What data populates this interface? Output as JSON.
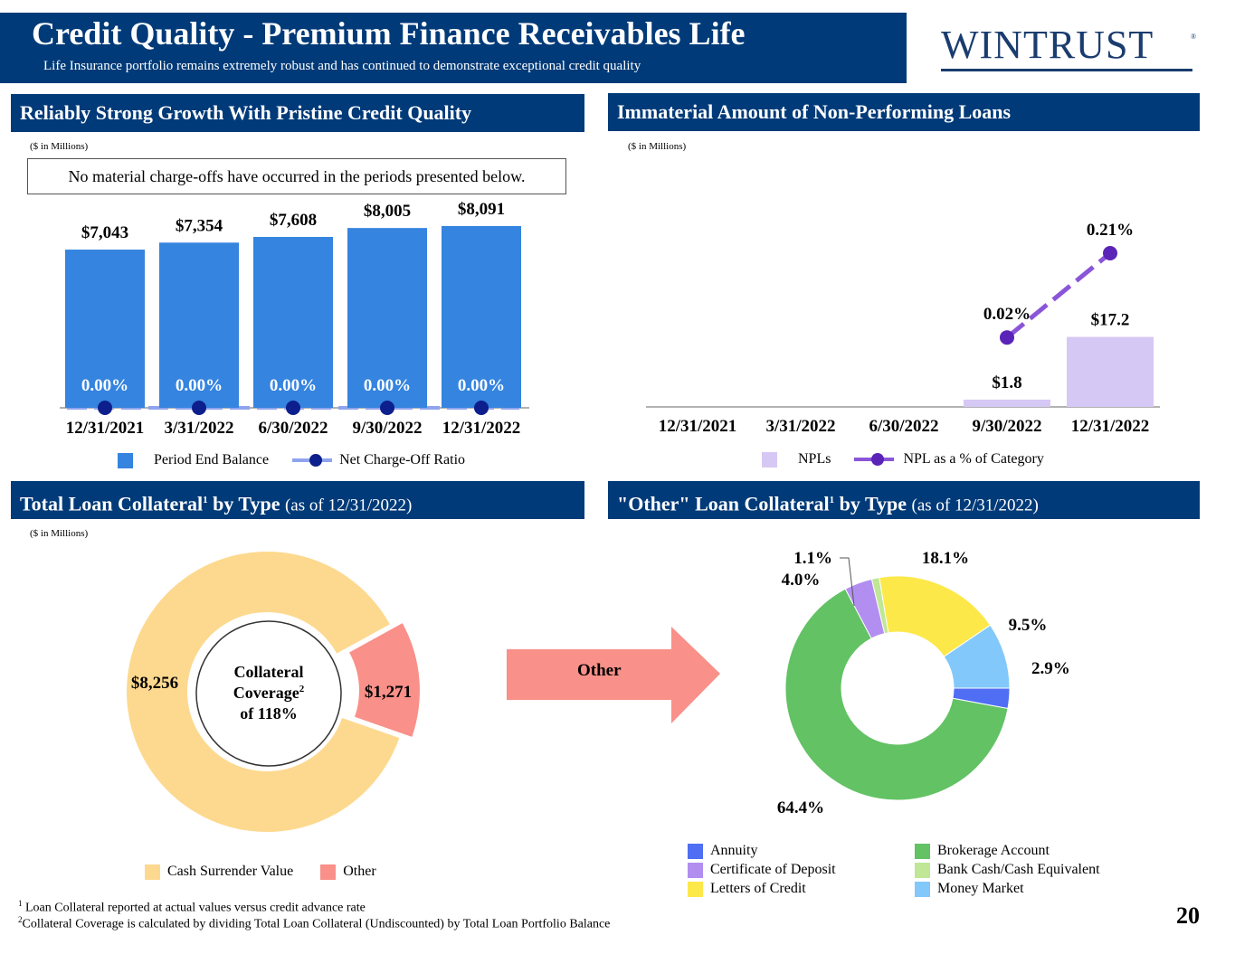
{
  "header": {
    "title": "Credit Quality - Premium Finance Receivables Life",
    "subtitle": "Life Insurance portfolio remains extremely robust and has continued to demonstrate exceptional credit quality",
    "logo_text": "WINTRUST"
  },
  "sections": {
    "growth_title": "Reliably Strong Growth With Pristine Credit Quality",
    "npl_title": "Immaterial Amount of Non-Performing Loans",
    "total_collateral_title": "Total Loan Collateral",
    "total_collateral_suffix": " by Type ",
    "total_collateral_asof": "(as of 12/31/2022)",
    "other_collateral_title": "\"Other\" Loan Collateral",
    "other_collateral_suffix": " by Type ",
    "other_collateral_asof": "(as of 12/31/2022)",
    "sup1": "1",
    "units": "($ in Millions)",
    "note": "No material charge-offs have occurred in the periods presented below."
  },
  "chart_data": [
    {
      "type": "bar",
      "title": "Reliably Strong Growth With Pristine Credit Quality",
      "categories": [
        "12/31/2021",
        "3/31/2022",
        "6/30/2022",
        "9/30/2022",
        "12/31/2022"
      ],
      "series": [
        {
          "name": "Period End Balance",
          "values": [
            7043,
            7354,
            7608,
            8005,
            8091
          ],
          "labels": [
            "$7,043",
            "$7,354",
            "$7,608",
            "$8,005",
            "$8,091"
          ],
          "color": "#3584df"
        },
        {
          "name": "Net Charge-Off Ratio",
          "values": [
            0.0,
            0.0,
            0.0,
            0.0,
            0.0
          ],
          "labels": [
            "0.00%",
            "0.00%",
            "0.00%",
            "0.00%",
            "0.00%"
          ],
          "color": "#0d1f8c",
          "line_color": "#8fa4ee"
        }
      ],
      "ylim": [
        0,
        9500
      ]
    },
    {
      "type": "bar",
      "title": "Immaterial Amount of Non-Performing Loans",
      "categories": [
        "12/31/2021",
        "3/31/2022",
        "6/30/2022",
        "9/30/2022",
        "12/31/2022"
      ],
      "series": [
        {
          "name": "NPLs",
          "values": [
            0,
            0,
            0,
            1.8,
            17.2
          ],
          "labels": [
            "",
            "",
            "",
            "$1.8",
            "$17.2"
          ],
          "color": "#d6c8f4"
        },
        {
          "name": "NPL as a % of Category",
          "values": [
            null,
            null,
            null,
            0.02,
            0.21
          ],
          "labels": [
            "",
            "",
            "",
            "0.02%",
            "0.21%"
          ],
          "color": "#5b24b8",
          "line_color": "#8a55d8"
        }
      ],
      "ylim": [
        0,
        40
      ]
    },
    {
      "type": "pie",
      "title": "Total Loan Collateral by Type (as of 12/31/2022)",
      "categories": [
        "Cash Surrender Value",
        "Other"
      ],
      "values": [
        8256,
        1271
      ],
      "labels": [
        "$8,256",
        "$1,271"
      ],
      "colors": [
        "#fdd98f",
        "#f99089"
      ],
      "center_lines": [
        "Collateral",
        "Coverage",
        "of 118%"
      ],
      "center_sup": "2"
    },
    {
      "type": "pie",
      "title": "\"Other\" Loan Collateral by Type (as of 12/31/2022)",
      "categories": [
        "Annuity",
        "Brokerage Account",
        "Certificate of Deposit",
        "Bank Cash/Cash Equivalent",
        "Letters of Credit",
        "Money Market"
      ],
      "values": [
        2.9,
        64.4,
        4.0,
        1.1,
        18.1,
        9.5
      ],
      "labels": [
        "2.9%",
        "64.4%",
        "4.0%",
        "1.1%",
        "18.1%",
        "9.5%"
      ],
      "colors": [
        "#4f6ef3",
        "#62c264",
        "#b18ef0",
        "#bfe796",
        "#fde84a",
        "#82c8fa"
      ]
    }
  ],
  "arrow_label": "Other",
  "footnotes": [
    {
      "sup": "1",
      "text": "Loan Collateral reported at actual values versus credit advance rate"
    },
    {
      "sup": "2",
      "text": "Collateral Coverage is calculated by dividing Total Loan Collateral (Undiscounted) by Total Loan Portfolio Balance"
    }
  ],
  "page_number": "20"
}
